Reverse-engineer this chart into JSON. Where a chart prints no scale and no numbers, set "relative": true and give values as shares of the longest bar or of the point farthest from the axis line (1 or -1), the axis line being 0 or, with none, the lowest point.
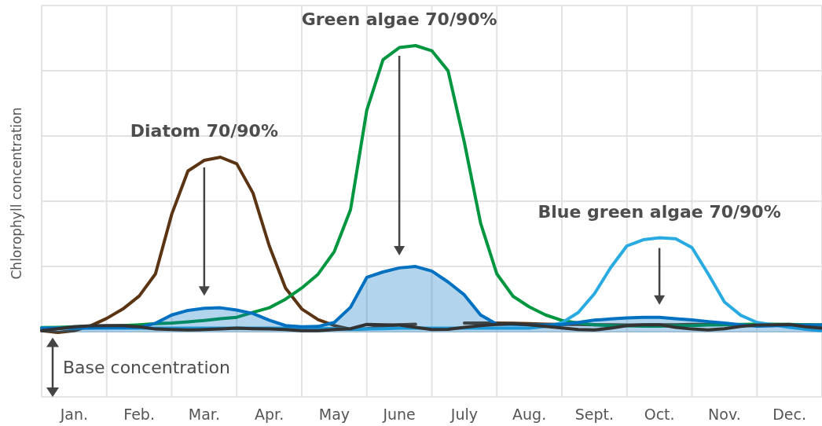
{
  "chart_data": {
    "type": "line",
    "relative": true,
    "ylabel": "Chlorophyll concentration",
    "categories": [
      null,
      null,
      "Jan.",
      null,
      null,
      null,
      "Feb.",
      null,
      null,
      null,
      "Mar.",
      null,
      null,
      null,
      "Apr.",
      null,
      null,
      null,
      "May",
      null,
      null,
      null,
      "June",
      null,
      null,
      null,
      "July",
      null,
      null,
      null,
      "Aug.",
      null,
      null,
      null,
      "Sept.",
      null,
      null,
      null,
      "Oct.",
      null,
      null,
      null,
      "Nov.",
      null,
      null,
      null,
      "Dec.",
      null,
      null
    ],
    "grid": true,
    "series": [
      {
        "color": "#5a3413",
        "values": [
          0.006,
          0,
          0.006,
          0.023,
          0.049,
          0.082,
          0.127,
          0.204,
          0.412,
          0.563,
          0.6,
          0.611,
          0.588,
          0.486,
          0.302,
          0.155,
          0.082,
          0.045,
          0.024,
          0.011,
          0.013,
          0.021,
          0.027,
          0.029,
          null,
          null,
          0.033,
          0.033,
          0.033,
          0.032,
          0.031,
          0.029,
          0.028,
          0.028,
          0.027,
          0.027,
          0.026,
          0.026,
          0.027,
          0.027,
          0.028,
          0.028,
          0.028,
          0.027,
          0.027,
          0.027,
          0.026,
          0.026,
          0.026
        ]
      },
      {
        "color": "#009640",
        "values": [
          0.017,
          0.018,
          0.02,
          0.021,
          0.022,
          0.024,
          0.027,
          0.031,
          0.033,
          0.037,
          0.042,
          0.048,
          0.053,
          0.07,
          0.086,
          0.116,
          0.155,
          0.203,
          0.282,
          0.428,
          0.775,
          0.951,
          0.993,
          1,
          0.982,
          0.912,
          0.663,
          0.381,
          0.204,
          0.126,
          0.089,
          0.061,
          0.042,
          0.033,
          0.027,
          0.024,
          0.023,
          0.022,
          0.022,
          0.023,
          0.024,
          0.026,
          0.027,
          0.028,
          0.029,
          0.029,
          0.028,
          0.027,
          0.026
        ]
      },
      {
        "color": "#29abe2",
        "values": [
          0.015,
          0.015,
          0.015,
          0.015,
          0.015,
          0.015,
          0.015,
          0.015,
          0.015,
          0.015,
          0.015,
          0.015,
          0.015,
          0.015,
          0.015,
          0.015,
          0.015,
          0.015,
          0.013,
          0.011,
          0.012,
          0.013,
          0.015,
          0.015,
          0.015,
          0.015,
          0.015,
          0.015,
          0.015,
          0.015,
          0.015,
          0.021,
          0.034,
          0.069,
          0.135,
          0.226,
          0.302,
          0.323,
          0.33,
          0.327,
          0.296,
          0.204,
          0.106,
          0.06,
          0.035,
          0.027,
          0.018,
          0.011,
          0.006
        ]
      },
      {
        "type": "area",
        "color": "#0070c0",
        "values": [
          0.015,
          0.015,
          0.016,
          0.016,
          0.017,
          0.017,
          0.018,
          0.032,
          0.061,
          0.077,
          0.084,
          0.086,
          0.078,
          0.066,
          0.043,
          0.024,
          0.02,
          0.021,
          0.035,
          0.088,
          0.192,
          0.211,
          0.225,
          0.23,
          0.214,
          0.176,
          0.131,
          0.061,
          0.029,
          0.028,
          0.027,
          0.026,
          0.028,
          0.035,
          0.043,
          0.047,
          0.051,
          0.053,
          0.053,
          0.048,
          0.044,
          0.038,
          0.033,
          0.027,
          0.022,
          0.023,
          0.026,
          0.026,
          0.026
        ]
      },
      {
        "color": "#333333",
        "values": [
          0.006,
          0.013,
          0.02,
          0.023,
          0.024,
          0.024,
          0.02,
          0.012,
          0.01,
          0.009,
          0.01,
          0.012,
          0.015,
          0.013,
          0.012,
          0.01,
          0.006,
          0.006,
          0.01,
          0.013,
          0.028,
          0.027,
          0.026,
          0.018,
          0.01,
          0.011,
          0.018,
          0.024,
          0.028,
          0.031,
          0.027,
          0.021,
          0.016,
          0.01,
          0.009,
          0.015,
          0.024,
          0.027,
          0.027,
          0.018,
          0.012,
          0.009,
          0.013,
          0.021,
          0.026,
          0.027,
          0.028,
          0.02,
          0.015
        ]
      }
    ],
    "annotations": [
      {
        "text": "Diatom 70/90%",
        "x": "Mar.",
        "y": 0.611
      },
      {
        "text": "Green algae 70/90%",
        "x": "June",
        "y": 1
      },
      {
        "text": "Blue green algae 70/90%",
        "x": "Oct.",
        "y": 0.33
      },
      "Base concentration"
    ]
  }
}
